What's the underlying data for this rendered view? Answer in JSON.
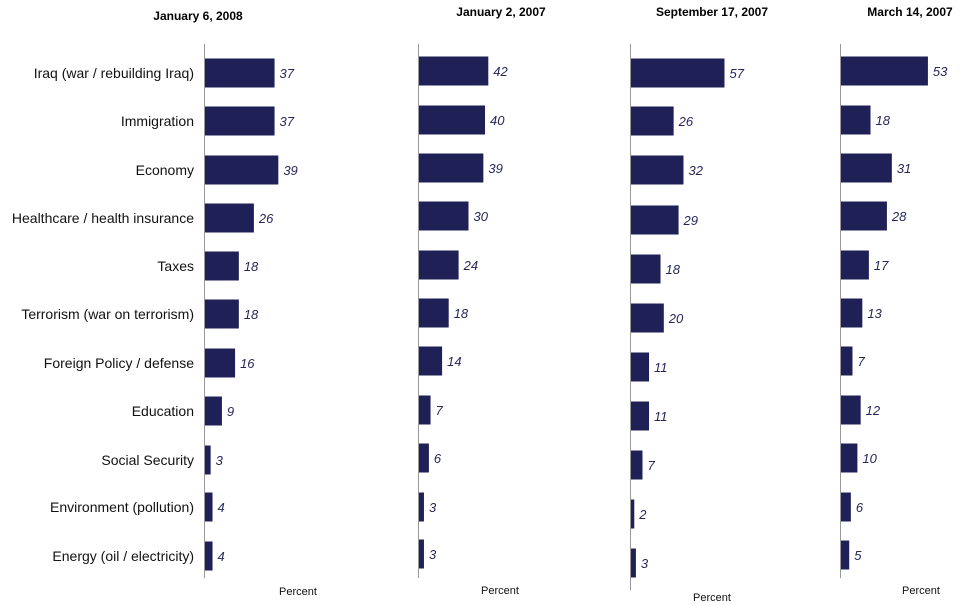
{
  "bar_color": "#1f2055",
  "axis_color": "#999999",
  "chart_data": [
    {
      "type": "bar",
      "orientation": "horizontal",
      "title": "January 6, 2008",
      "xlabel": "Percent",
      "categories": [
        "Iraq (war / rebuilding Iraq)",
        "Immigration",
        "Economy",
        "Healthcare / health insurance",
        "Taxes",
        "Terrorism (war on terrorism)",
        "Foreign Policy / defense",
        "Education",
        "Social Security",
        "Environment (pollution)",
        "Energy (oil / electricity)"
      ],
      "values": [
        37,
        37,
        39,
        26,
        18,
        18,
        16,
        9,
        3,
        4,
        4
      ]
    },
    {
      "type": "bar",
      "orientation": "horizontal",
      "title": "January 2, 2007",
      "xlabel": "Percent",
      "categories": [
        "Iraq (war / rebuilding Iraq)",
        "Immigration",
        "Economy",
        "Healthcare / health insurance",
        "Taxes",
        "Terrorism (war on terrorism)",
        "Foreign Policy / defense",
        "Education",
        "Social Security",
        "Environment (pollution)",
        "Energy (oil / electricity)"
      ],
      "values": [
        42,
        40,
        39,
        30,
        24,
        18,
        14,
        7,
        6,
        3,
        3
      ]
    },
    {
      "type": "bar",
      "orientation": "horizontal",
      "title": "September 17, 2007",
      "xlabel": "Percent",
      "categories": [
        "Iraq (war / rebuilding Iraq)",
        "Immigration",
        "Economy",
        "Healthcare / health insurance",
        "Taxes",
        "Terrorism (war on terrorism)",
        "Foreign Policy / defense",
        "Education",
        "Social Security",
        "Environment (pollution)",
        "Energy (oil / electricity)"
      ],
      "values": [
        57,
        26,
        32,
        29,
        18,
        20,
        11,
        11,
        7,
        2,
        3
      ]
    },
    {
      "type": "bar",
      "orientation": "horizontal",
      "title": "March 14, 2007",
      "xlabel": "Percent",
      "categories": [
        "Iraq (war / rebuilding Iraq)",
        "Immigration",
        "Economy",
        "Healthcare / health insurance",
        "Taxes",
        "Terrorism (war on terrorism)",
        "Foreign Policy / defense",
        "Education",
        "Social Security",
        "Environment (pollution)",
        "Energy (oil / electricity)"
      ],
      "values": [
        53,
        18,
        31,
        28,
        17,
        13,
        7,
        12,
        10,
        6,
        5
      ]
    }
  ]
}
